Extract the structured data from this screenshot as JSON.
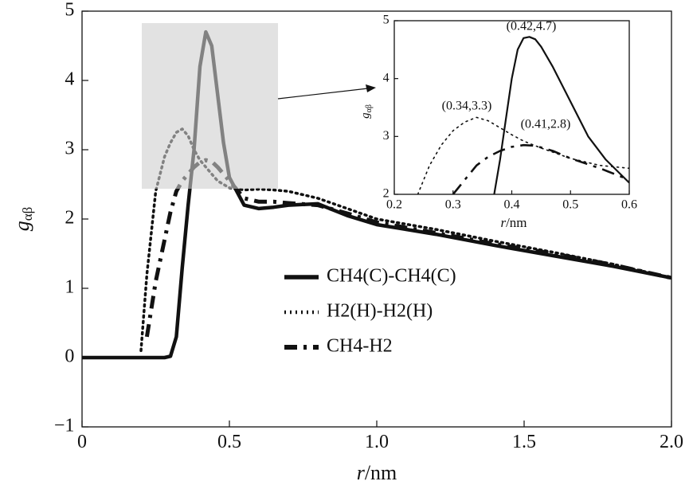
{
  "chart_data": [
    {
      "type": "line",
      "x_label": {
        "var": "r",
        "unit": "/nm"
      },
      "y_label": {
        "main": "g",
        "sub": "αβ"
      },
      "xlim": [
        0,
        2.0
      ],
      "ylim": [
        -1,
        5
      ],
      "xticks": [
        0,
        0.5,
        {
          "value": 1.0,
          "label": "1.0"
        },
        1.5,
        {
          "value": 2.0,
          "label": "2.0"
        }
      ],
      "yticks": [
        {
          "value": -1,
          "label": "−1"
        },
        0,
        1,
        2,
        3,
        4,
        5
      ],
      "legend": "center",
      "series": [
        {
          "name": "CH4(C)-CH4(C)",
          "color": "#111111",
          "style": "solid",
          "x": [
            0,
            0.1,
            0.2,
            0.28,
            0.3,
            0.32,
            0.34,
            0.36,
            0.38,
            0.4,
            0.42,
            0.44,
            0.46,
            0.48,
            0.5,
            0.55,
            0.6,
            0.65,
            0.7,
            0.8,
            0.9,
            1.0,
            1.2,
            1.4,
            1.6,
            1.8,
            2.0
          ],
          "values": [
            0,
            0,
            0,
            0,
            0.02,
            0.3,
            1.3,
            2.2,
            3.0,
            4.2,
            4.7,
            4.5,
            3.8,
            3.1,
            2.6,
            2.2,
            2.15,
            2.17,
            2.2,
            2.22,
            2.05,
            1.92,
            1.78,
            1.62,
            1.47,
            1.32,
            1.15
          ]
        },
        {
          "name": "H2(H)-H2(H)",
          "color": "#111111",
          "style": "dotted",
          "x": [
            0.2,
            0.22,
            0.25,
            0.28,
            0.3,
            0.32,
            0.34,
            0.36,
            0.38,
            0.4,
            0.42,
            0.44,
            0.46,
            0.48,
            0.5,
            0.55,
            0.6,
            0.65,
            0.7,
            0.8,
            0.9,
            1.0,
            1.2,
            1.4,
            1.6,
            1.8,
            2.0
          ],
          "values": [
            0.1,
            1.2,
            2.4,
            2.9,
            3.1,
            3.25,
            3.3,
            3.2,
            3.0,
            2.85,
            2.75,
            2.65,
            2.55,
            2.5,
            2.45,
            2.42,
            2.43,
            2.42,
            2.4,
            2.3,
            2.15,
            2.0,
            1.85,
            1.68,
            1.52,
            1.35,
            1.15
          ]
        },
        {
          "name": "CH4-H2",
          "color": "#111111",
          "style": "dashdot",
          "x": [
            0.22,
            0.25,
            0.28,
            0.3,
            0.32,
            0.34,
            0.36,
            0.38,
            0.4,
            0.42,
            0.44,
            0.46,
            0.48,
            0.5,
            0.55,
            0.6,
            0.65,
            0.7,
            0.8,
            0.9,
            1.0,
            1.2,
            1.4,
            1.6,
            1.8,
            2.0
          ],
          "values": [
            0.3,
            1.1,
            1.7,
            2.1,
            2.4,
            2.55,
            2.65,
            2.75,
            2.82,
            2.85,
            2.83,
            2.75,
            2.65,
            2.55,
            2.3,
            2.25,
            2.25,
            2.23,
            2.2,
            2.08,
            1.95,
            1.8,
            1.64,
            1.5,
            1.34,
            1.15
          ]
        }
      ]
    },
    {
      "type": "line",
      "x_label": {
        "var": "r",
        "unit": "/nm"
      },
      "y_label": {
        "main": "g",
        "sub": "αβ"
      },
      "xlim": [
        0.2,
        0.6
      ],
      "ylim": [
        2,
        5
      ],
      "xticks": [
        0.2,
        0.3,
        0.4,
        0.5,
        0.6
      ],
      "yticks": [
        2,
        3,
        4,
        5
      ],
      "annotations": [
        "(0.42,4.7)",
        "(0.34,3.3)",
        "(0.41,2.8)"
      ],
      "series": [
        {
          "color": "#111111",
          "style": "solid",
          "x": [
            0.37,
            0.38,
            0.39,
            0.4,
            0.41,
            0.42,
            0.43,
            0.44,
            0.45,
            0.47,
            0.5,
            0.53,
            0.56,
            0.6
          ],
          "values": [
            2.0,
            2.6,
            3.3,
            4.0,
            4.5,
            4.7,
            4.72,
            4.68,
            4.55,
            4.2,
            3.6,
            3.0,
            2.6,
            2.2
          ]
        },
        {
          "color": "#111111",
          "style": "dotted",
          "x": [
            0.24,
            0.26,
            0.28,
            0.3,
            0.32,
            0.34,
            0.36,
            0.38,
            0.4,
            0.42,
            0.45,
            0.5,
            0.55,
            0.6
          ],
          "values": [
            2.0,
            2.5,
            2.85,
            3.1,
            3.25,
            3.33,
            3.27,
            3.15,
            3.03,
            2.92,
            2.8,
            2.62,
            2.5,
            2.45
          ]
        },
        {
          "color": "#111111",
          "style": "dashdot",
          "x": [
            0.3,
            0.32,
            0.34,
            0.36,
            0.38,
            0.4,
            0.42,
            0.44,
            0.47,
            0.5,
            0.55,
            0.6
          ],
          "values": [
            2.0,
            2.25,
            2.5,
            2.65,
            2.75,
            2.82,
            2.85,
            2.84,
            2.75,
            2.62,
            2.45,
            2.25
          ]
        }
      ]
    }
  ]
}
